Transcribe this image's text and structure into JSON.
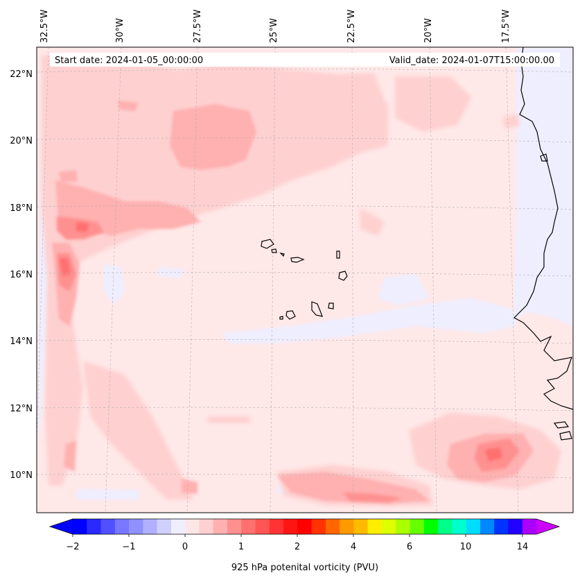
{
  "map": {
    "header": {
      "start_date": "Start date: 2024-01-05_00:00:00",
      "valid_date": "Valid_date: 2024-01-07T15:00:00.00"
    },
    "lon_labels": [
      "32.5°W",
      "30°W",
      "27.5°W",
      "25°W",
      "22.5°W",
      "20°W",
      "17.5°W"
    ],
    "lat_labels": [
      "22°N",
      "20°N",
      "18°N",
      "16°N",
      "14°N",
      "12°N",
      "10°N"
    ],
    "colorbar": {
      "label": "925 hPa potenital vorticity (PVU)",
      "tick_labels": [
        "−2",
        "−1",
        "0",
        "1",
        "2",
        "4",
        "6",
        "10",
        "14"
      ],
      "colors": [
        "#0000ff",
        "#2a2aff",
        "#5050ff",
        "#7777ff",
        "#9090ff",
        "#b0b0ff",
        "#d0d0ff",
        "#eeeeff",
        "#ffe6e6",
        "#ffd0d0",
        "#ffb0b0",
        "#ff9090",
        "#ff7070",
        "#ff5555",
        "#ff3333",
        "#ff1414",
        "#ff0000",
        "#ff3300",
        "#ff6600",
        "#ff9900",
        "#ffbb00",
        "#ffee00",
        "#ddff00",
        "#aaff00",
        "#66ff00",
        "#00ff00",
        "#00ff88",
        "#00ffcc",
        "#00ddff",
        "#0088ff",
        "#0033ff",
        "#2200ff",
        "#aa00ff"
      ],
      "under_color": "#0000ff",
      "over_color": "#cc00ff"
    },
    "colors": {
      "background_field": "#ffe8e8",
      "ocean_shade_negative": "#eeeeff",
      "coastline": "#000000"
    }
  }
}
